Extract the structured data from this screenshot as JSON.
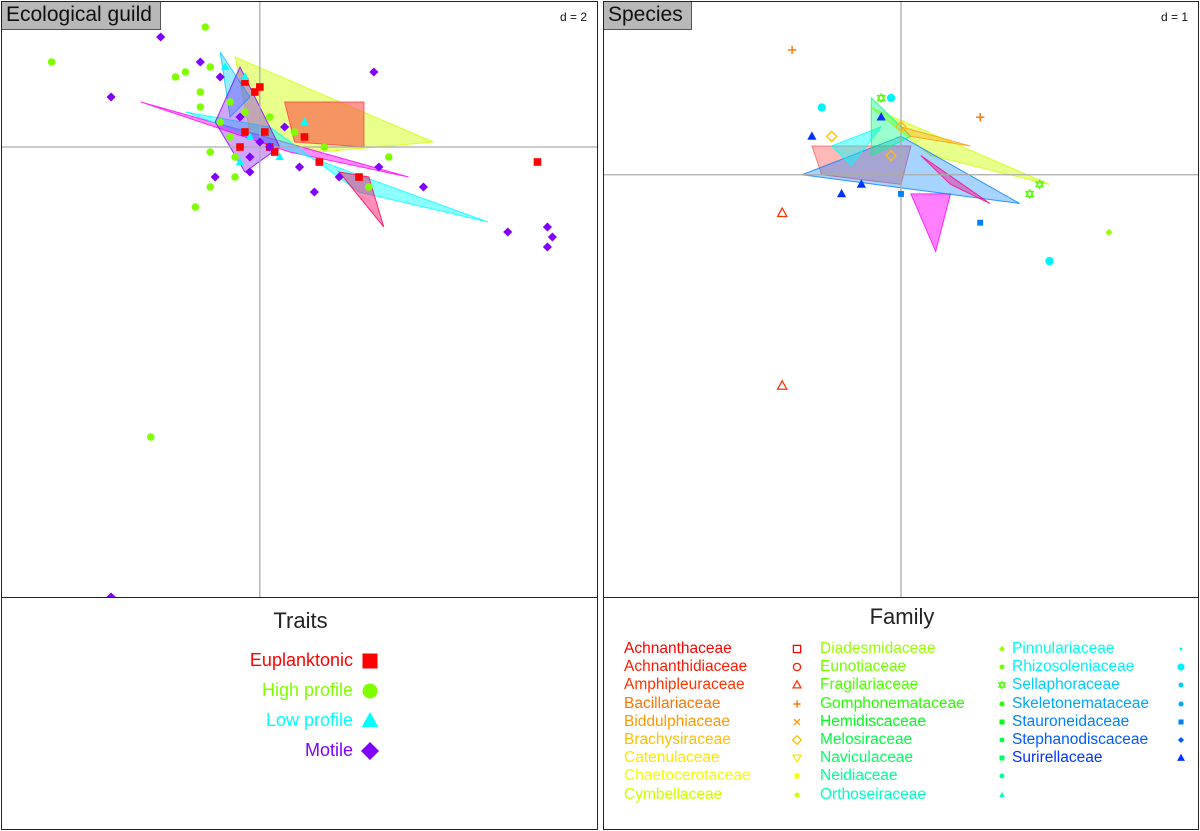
{
  "left_panel": {
    "title": "Ecological guild",
    "scale_label": "d = 2",
    "legend_title": "Traits",
    "legend": [
      {
        "label": "Euplanktonic",
        "color": "#ff0000",
        "marker": "square"
      },
      {
        "label": "High profile",
        "color": "#7fff00",
        "marker": "circle"
      },
      {
        "label": "Low profile",
        "color": "#00ffff",
        "marker": "triangle"
      },
      {
        "label": "Motile",
        "color": "#7f00ff",
        "marker": "diamond"
      }
    ]
  },
  "right_panel": {
    "title": "Species",
    "scale_label": "d = 1",
    "legend_title": "Family",
    "families": [
      {
        "label": "Achnanthaceae",
        "color": "#ff0000",
        "marker": "open-square"
      },
      {
        "label": "Achnanthidiaceae",
        "color": "#ff1a00",
        "marker": "open-circle"
      },
      {
        "label": "Amphipleuraceae",
        "color": "#ff3300",
        "marker": "open-triangle"
      },
      {
        "label": "Bacillariaceae",
        "color": "#ff7300",
        "marker": "plus"
      },
      {
        "label": "Biddulphiaceae",
        "color": "#ff9900",
        "marker": "cross"
      },
      {
        "label": "Brachysiraceae",
        "color": "#ffbf00",
        "marker": "open-diamond"
      },
      {
        "label": "Catenulaceae",
        "color": "#ffe600",
        "marker": "open-down-triangle"
      },
      {
        "label": "Chaetocerotaceae",
        "color": "#f2ff00",
        "marker": "small-square"
      },
      {
        "label": "Cymbellaceae",
        "color": "#ccff00",
        "marker": "small-circle"
      },
      {
        "label": "Diadesmidaceae",
        "color": "#99ff00",
        "marker": "small-diamond"
      },
      {
        "label": "Eunotiaceae",
        "color": "#73ff00",
        "marker": "small-dot"
      },
      {
        "label": "Fragilariaceae",
        "color": "#4dff00",
        "marker": "open-star"
      },
      {
        "label": "Gomphonemataceae",
        "color": "#26ff00",
        "marker": "small-dot"
      },
      {
        "label": "Hemidiscaceae",
        "color": "#00ff1a",
        "marker": "small-square"
      },
      {
        "label": "Melosiraceae",
        "color": "#00ff40",
        "marker": "small-dot"
      },
      {
        "label": "Naviculaceae",
        "color": "#00ff66",
        "marker": "small-square"
      },
      {
        "label": "Neidiaceae",
        "color": "#00ff99",
        "marker": "small-dot"
      },
      {
        "label": "Orthoseiraceae",
        "color": "#00ffbf",
        "marker": "small-triangle"
      },
      {
        "label": "Pinnulariaceae",
        "color": "#00ffe6",
        "marker": "tiny-dot"
      },
      {
        "label": "Rhizosoleniaceae",
        "color": "#00f2ff",
        "marker": "circle"
      },
      {
        "label": "Sellaphoraceae",
        "color": "#00ccff",
        "marker": "small-dot"
      },
      {
        "label": "Skeletonemataceae",
        "color": "#00a6ff",
        "marker": "small-dot"
      },
      {
        "label": "Stauroneidaceae",
        "color": "#0080ff",
        "marker": "small-square"
      },
      {
        "label": "Stephanodiscaceae",
        "color": "#0059ff",
        "marker": "small-diamond"
      },
      {
        "label": "Surirellaceae",
        "color": "#0033ff",
        "marker": "triangle"
      }
    ]
  },
  "chart_data": [
    {
      "type": "scatter",
      "title": "Ecological guild",
      "scale": "d = 2",
      "xlim": [
        -5.2,
        6.8
      ],
      "ylim": [
        -9.0,
        2.9
      ],
      "grid": false,
      "axes_lines_at_origin": true,
      "series": [
        {
          "name": "Euplanktonic",
          "color": "#ff0000",
          "points": [
            [
              -0.3,
              1.3
            ],
            [
              -0.1,
              1.1
            ],
            [
              0.0,
              1.2
            ],
            [
              -0.3,
              0.3
            ],
            [
              0.2,
              0.0
            ],
            [
              0.3,
              -0.1
            ],
            [
              0.9,
              0.2
            ],
            [
              1.2,
              -0.3
            ],
            [
              2.0,
              -0.6
            ],
            [
              5.6,
              -0.3
            ],
            [
              -0.4,
              0.0
            ],
            [
              0.1,
              0.3
            ]
          ]
        },
        {
          "name": "High profile",
          "color": "#7fff00",
          "points": [
            [
              -4.2,
              1.7
            ],
            [
              -1.1,
              2.4
            ],
            [
              -1.7,
              1.4
            ],
            [
              -1.5,
              1.5
            ],
            [
              -1.0,
              1.6
            ],
            [
              -1.2,
              0.8
            ],
            [
              -0.6,
              0.9
            ],
            [
              -0.8,
              0.5
            ],
            [
              -1.0,
              -0.1
            ],
            [
              -1.0,
              -0.8
            ],
            [
              -1.3,
              -1.2
            ],
            [
              -0.5,
              -0.6
            ],
            [
              0.7,
              0.3
            ],
            [
              1.3,
              0.0
            ],
            [
              2.6,
              -0.2
            ],
            [
              2.2,
              -0.8
            ],
            [
              -2.2,
              -5.8
            ],
            [
              -0.3,
              0.7
            ],
            [
              -0.6,
              0.2
            ],
            [
              -0.5,
              -0.2
            ],
            [
              0.2,
              0.6
            ],
            [
              -1.2,
              1.1
            ]
          ]
        },
        {
          "name": "Low profile",
          "color": "#00ffff",
          "points": [
            [
              -0.7,
              1.6
            ],
            [
              -0.3,
              1.4
            ],
            [
              0.9,
              0.5
            ],
            [
              -0.2,
              0.2
            ],
            [
              0.4,
              -0.2
            ],
            [
              -0.4,
              -0.3
            ]
          ]
        },
        {
          "name": "Motile",
          "color": "#7f00ff",
          "points": [
            [
              -2.0,
              2.2
            ],
            [
              -1.2,
              1.7
            ],
            [
              -0.8,
              1.4
            ],
            [
              2.3,
              1.5
            ],
            [
              -3.0,
              1.0
            ],
            [
              -0.4,
              0.6
            ],
            [
              0.8,
              -0.4
            ],
            [
              1.6,
              -0.6
            ],
            [
              2.4,
              -0.4
            ],
            [
              3.3,
              -0.8
            ],
            [
              5.0,
              -1.7
            ],
            [
              5.8,
              -1.6
            ],
            [
              5.8,
              -2.0
            ],
            [
              5.9,
              -1.8
            ],
            [
              -0.9,
              -0.6
            ],
            [
              -0.2,
              -0.5
            ],
            [
              1.1,
              -0.9
            ],
            [
              -3.0,
              -9.0
            ],
            [
              0.0,
              0.1
            ],
            [
              0.5,
              0.4
            ],
            [
              -0.2,
              -0.2
            ],
            [
              0.2,
              0.0
            ]
          ]
        }
      ]
    },
    {
      "type": "scatter",
      "title": "Species",
      "scale": "d = 1",
      "xlim": [
        -3.0,
        3.0
      ],
      "ylim": [
        -4.4,
        1.8
      ],
      "grid": false,
      "axes_lines_at_origin": true,
      "series": [
        {
          "name": "Amphipleuraceae",
          "color": "#ff3300",
          "points": [
            [
              -1.2,
              -0.4
            ],
            [
              -1.2,
              -2.2
            ]
          ]
        },
        {
          "name": "Bacillariaceae",
          "color": "#ff7300",
          "points": [
            [
              -1.1,
              1.3
            ],
            [
              0.8,
              0.6
            ]
          ]
        },
        {
          "name": "Brachysiraceae",
          "color": "#ffbf00",
          "points": [
            [
              -0.7,
              0.4
            ],
            [
              -0.1,
              0.2
            ],
            [
              0.0,
              0.5
            ]
          ]
        },
        {
          "name": "Diadesmidaceae",
          "color": "#99ff00",
          "points": [
            [
              2.1,
              -0.6
            ]
          ]
        },
        {
          "name": "Fragilariaceae",
          "color": "#4dff00",
          "points": [
            [
              -0.2,
              0.8
            ],
            [
              1.4,
              -0.1
            ],
            [
              1.3,
              -0.2
            ]
          ]
        },
        {
          "name": "Rhizosoleniaceae",
          "color": "#00f2ff",
          "points": [
            [
              -0.8,
              0.7
            ],
            [
              1.5,
              -0.9
            ],
            [
              -0.1,
              0.8
            ]
          ]
        },
        {
          "name": "Stauroneidaceae",
          "color": "#0080ff",
          "points": [
            [
              0.8,
              -0.5
            ],
            [
              0.0,
              -0.2
            ]
          ]
        },
        {
          "name": "Surirellaceae",
          "color": "#0033ff",
          "points": [
            [
              -0.9,
              0.4
            ],
            [
              -0.2,
              0.6
            ],
            [
              -0.4,
              -0.1
            ],
            [
              -0.6,
              -0.2
            ]
          ]
        }
      ]
    }
  ]
}
